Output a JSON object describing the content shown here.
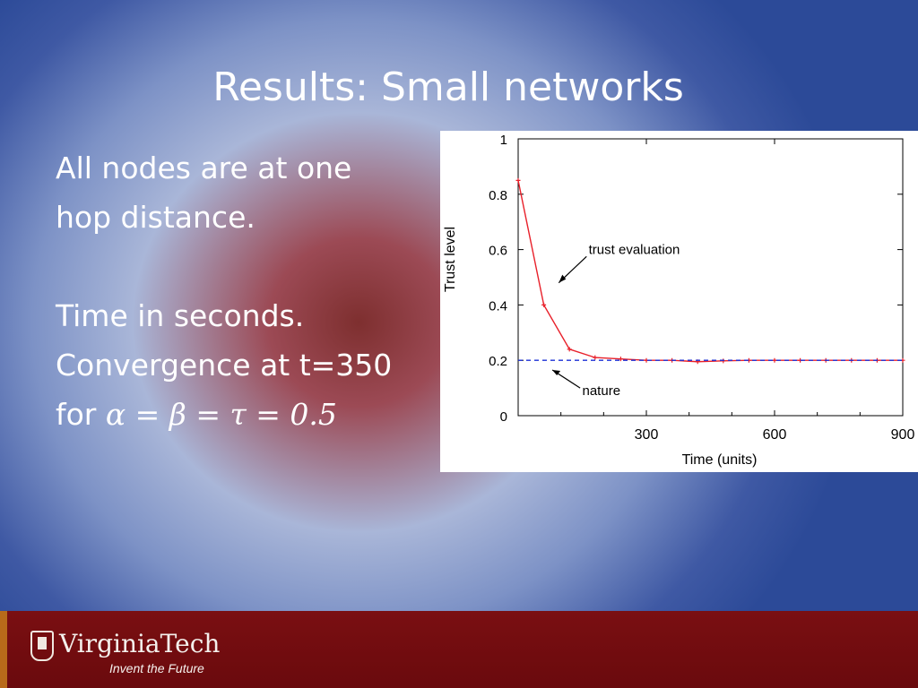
{
  "slide": {
    "title": "Results: Small networks",
    "body": {
      "line1": "All nodes are at one",
      "line2": "hop distance.",
      "line3": "Time in seconds.",
      "line4": "Convergence at t=350",
      "line5_prefix": "for ",
      "line5_math": "α = β = τ = 0.5"
    }
  },
  "footer": {
    "logo_text": "VirginiaTech",
    "tagline": "Invent the Future"
  },
  "colors": {
    "footer_bg": "#6e0c0f",
    "trust_line": "#e8202a",
    "nature_line": "#1a2fd6"
  },
  "chart_data": {
    "type": "line",
    "title": "",
    "xlabel": "Time (units)",
    "ylabel": "Trust level",
    "xlim": [
      0,
      900
    ],
    "ylim": [
      0,
      1
    ],
    "xticks": [
      300,
      600,
      900
    ],
    "yticks": [
      0,
      0.2,
      0.4,
      0.6,
      0.8,
      1
    ],
    "grid": false,
    "series": [
      {
        "name": "trust evaluation",
        "style": "solid",
        "color": "#e8202a",
        "x": [
          0,
          60,
          120,
          180,
          240,
          300,
          360,
          420,
          480,
          540,
          600,
          660,
          720,
          780,
          840,
          900
        ],
        "y": [
          0.85,
          0.4,
          0.24,
          0.21,
          0.205,
          0.2,
          0.2,
          0.195,
          0.198,
          0.2,
          0.2,
          0.2,
          0.2,
          0.2,
          0.2,
          0.2
        ]
      },
      {
        "name": "nature",
        "style": "dashed",
        "color": "#1a2fd6",
        "x": [
          0,
          900
        ],
        "y": [
          0.2,
          0.2
        ]
      }
    ],
    "annotations": [
      "trust evaluation",
      "nature"
    ]
  }
}
